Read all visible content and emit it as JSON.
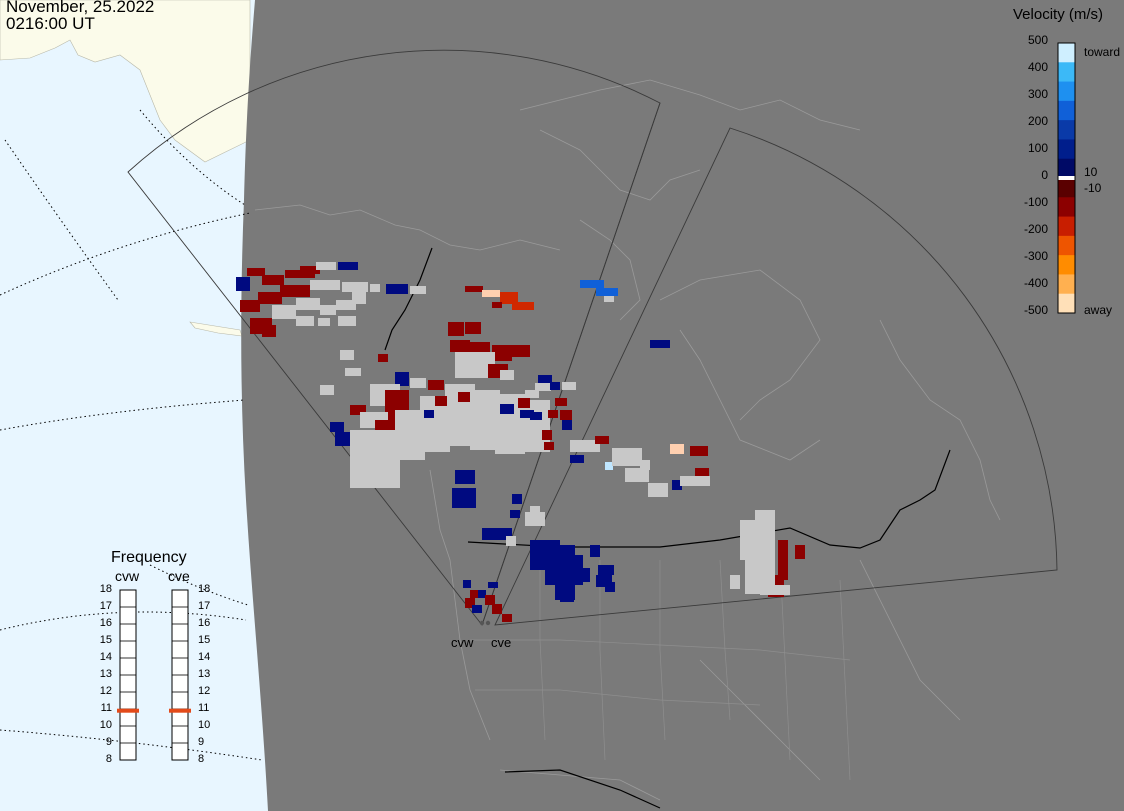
{
  "header": {
    "date": "November, 25.2022",
    "time": "0216:00 UT"
  },
  "velocity_scale": {
    "title": "Velocity (m/s)",
    "ticks": [
      "500",
      "400",
      "300",
      "200",
      "100",
      "0",
      "-100",
      "-200",
      "-300",
      "-400",
      "-500"
    ],
    "toward_label": "toward",
    "away_label": "away",
    "plus_threshold": "10",
    "minus_threshold": "-10",
    "colors": [
      "#cfefff",
      "#3cb9f7",
      "#1e90f0",
      "#1060d8",
      "#0a3aa8",
      "#001e8c",
      "#000a66",
      "#5a0000",
      "#8c0000",
      "#c81e00",
      "#ee5500",
      "#ff8c00",
      "#ffb050",
      "#ffe0b8"
    ],
    "ground_scatter_color": "#c8c8c8"
  },
  "frequency_panel": {
    "title": "Frequency",
    "radars": [
      {
        "label": "cvw",
        "value_mhz": 10.9
      },
      {
        "label": "cve",
        "value_mhz": 10.9
      }
    ],
    "scale": [
      "18",
      "17",
      "16",
      "15",
      "14",
      "13",
      "12",
      "11",
      "10",
      "9",
      "8"
    ],
    "marker_color": "#e34a1a"
  },
  "map": {
    "site_labels": [
      "cvw",
      "cve"
    ],
    "sea_color": "#e8f6ff",
    "land_color": "#fbfbea",
    "night_color": "#7a7a7a"
  }
}
